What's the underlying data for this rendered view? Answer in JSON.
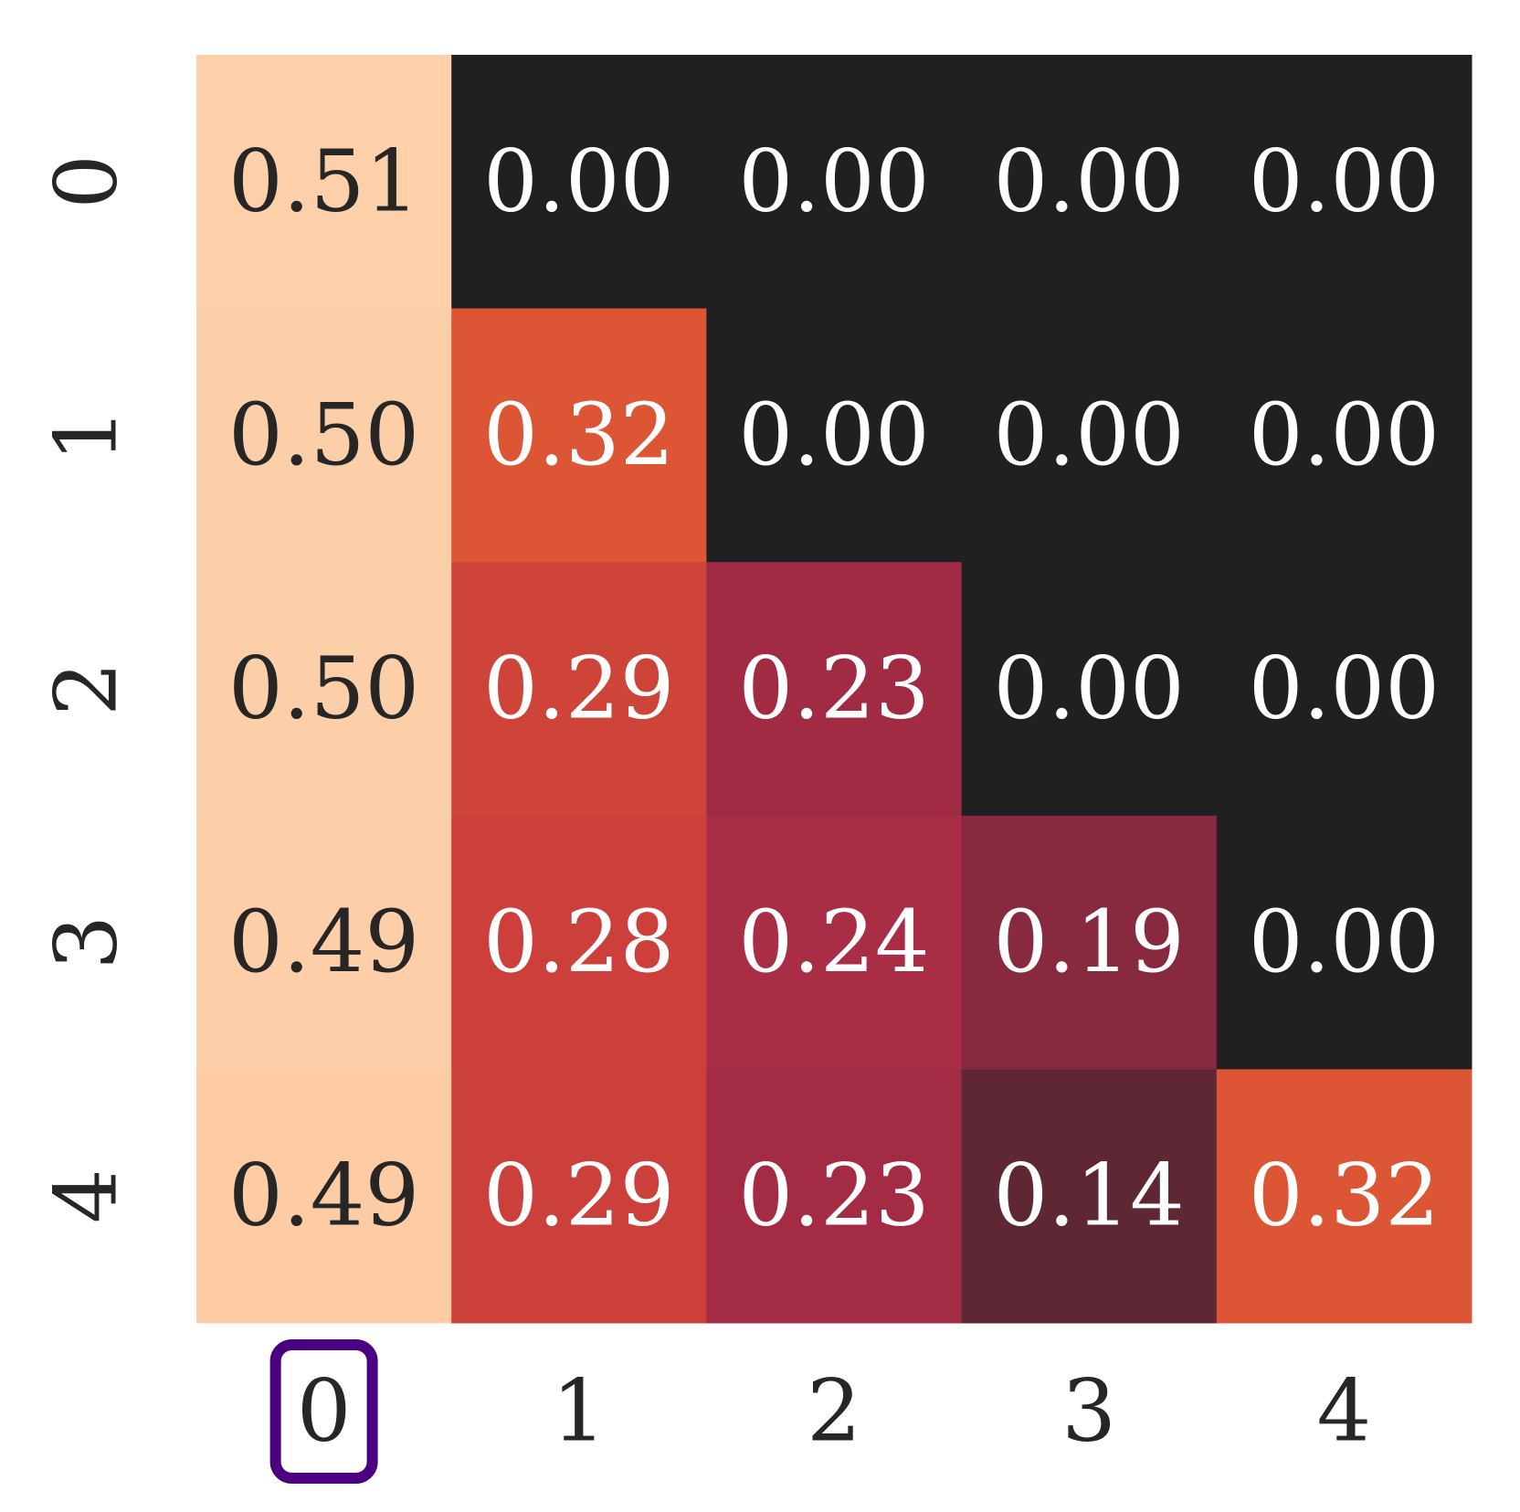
{
  "chart_data": {
    "type": "heatmap",
    "x_tick_labels": [
      "0",
      "1",
      "2",
      "3",
      "4"
    ],
    "y_tick_labels": [
      "0",
      "1",
      "2",
      "3",
      "4"
    ],
    "values": [
      [
        0.51,
        0.0,
        0.0,
        0.0,
        0.0
      ],
      [
        0.5,
        0.32,
        0.0,
        0.0,
        0.0
      ],
      [
        0.5,
        0.29,
        0.23,
        0.0,
        0.0
      ],
      [
        0.49,
        0.28,
        0.24,
        0.19,
        0.0
      ],
      [
        0.49,
        0.29,
        0.23,
        0.14,
        0.32
      ]
    ],
    "value_labels": [
      [
        "0.51",
        "0.00",
        "0.00",
        "0.00",
        "0.00"
      ],
      [
        "0.50",
        "0.32",
        "0.00",
        "0.00",
        "0.00"
      ],
      [
        "0.50",
        "0.29",
        "0.23",
        "0.00",
        "0.00"
      ],
      [
        "0.49",
        "0.28",
        "0.24",
        "0.19",
        "0.00"
      ],
      [
        "0.49",
        "0.29",
        "0.23",
        "0.14",
        "0.32"
      ]
    ],
    "cell_colors": [
      [
        "#fdd0aa",
        "#202020",
        "#202020",
        "#202020",
        "#202020"
      ],
      [
        "#fdcfa9",
        "#dc5535",
        "#202020",
        "#202020",
        "#202020"
      ],
      [
        "#fdcfa9",
        "#cf4439",
        "#a22b44",
        "#202020",
        "#202020"
      ],
      [
        "#fdcea8",
        "#cc3f3a",
        "#a92d44",
        "#872a40",
        "#202020"
      ],
      [
        "#fdcca5",
        "#cb403a",
        "#a32b43",
        "#5f2634",
        "#dc5535"
      ]
    ],
    "text_colors": [
      [
        "#262626",
        "#ffffff",
        "#ffffff",
        "#ffffff",
        "#ffffff"
      ],
      [
        "#262626",
        "#ffffff",
        "#ffffff",
        "#ffffff",
        "#ffffff"
      ],
      [
        "#262626",
        "#ffffff",
        "#ffffff",
        "#ffffff",
        "#ffffff"
      ],
      [
        "#262626",
        "#ffffff",
        "#ffffff",
        "#ffffff",
        "#ffffff"
      ],
      [
        "#262626",
        "#ffffff",
        "#ffffff",
        "#ffffff",
        "#ffffff"
      ]
    ],
    "colorbar": false,
    "highlighted_x_tick": "0",
    "highlight_color": "#4b0082"
  }
}
